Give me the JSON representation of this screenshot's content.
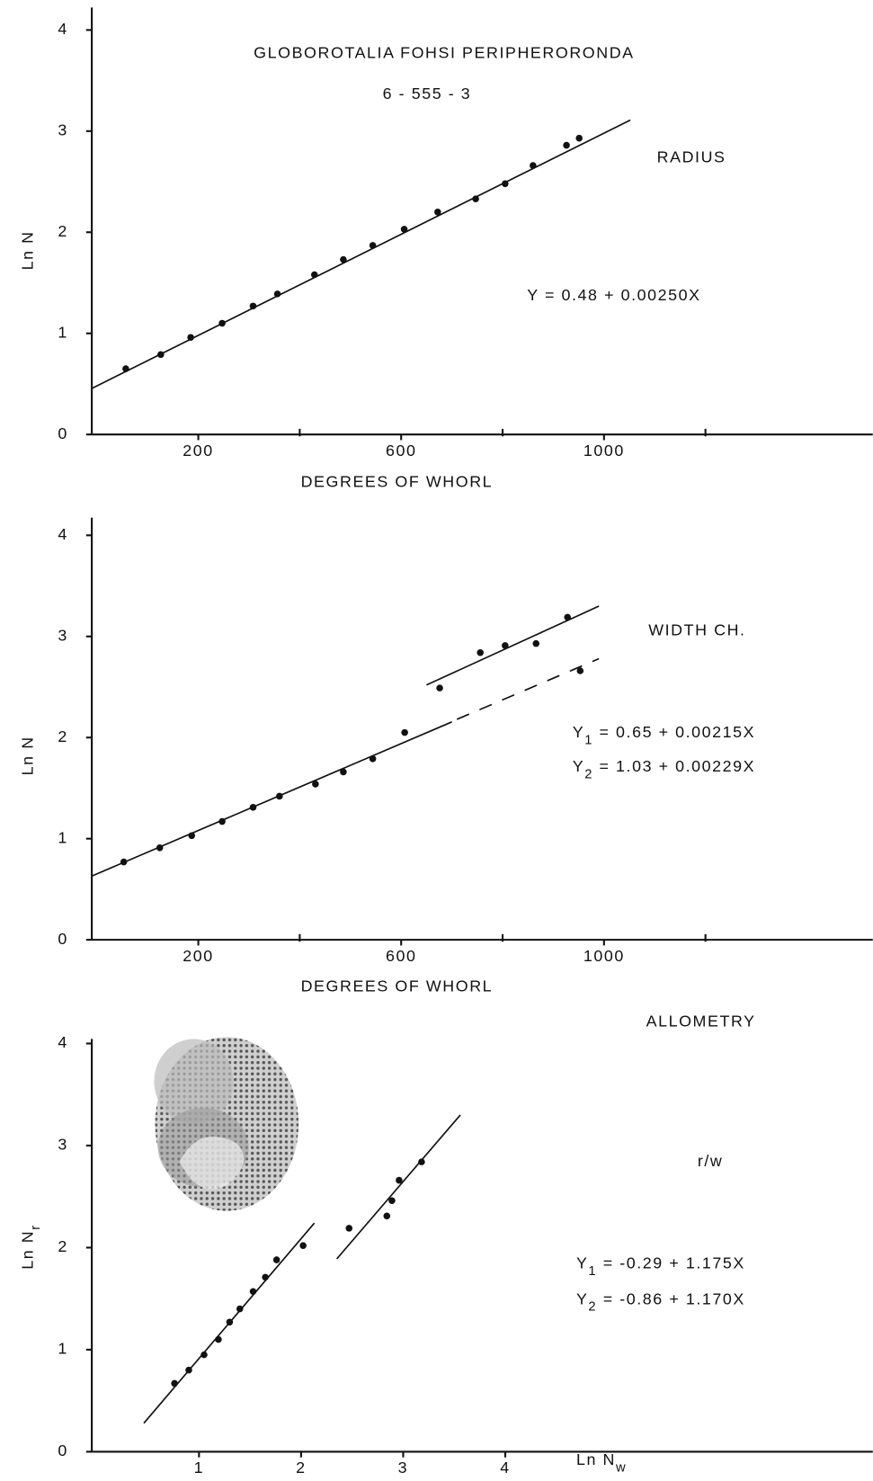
{
  "chart_data": [
    {
      "type": "scatter",
      "title": "GLOBOROTALIA  FOHSI  PERIPHERORONDA",
      "subtitle": "6 - 555 - 3",
      "x_label": "DEGREES   OF   WHORL",
      "y_label": {
        "text": "Ln N"
      },
      "annotations": [
        {
          "text": "RADIUS"
        },
        {
          "text": "Y = 0.48 + 0.00250X"
        }
      ],
      "x": [
        57,
        126,
        185,
        247,
        308,
        356,
        429,
        486,
        544,
        606,
        672,
        747,
        805,
        860,
        926,
        951
      ],
      "values": [
        0.65,
        0.79,
        0.96,
        1.1,
        1.27,
        1.39,
        1.58,
        1.73,
        1.87,
        2.03,
        2.2,
        2.33,
        2.48,
        2.66,
        2.86,
        2.93
      ],
      "fit_lines": [
        {
          "x": [
            -10,
            1052
          ],
          "y": [
            0.455,
            3.11
          ]
        }
      ],
      "xlim": [
        -10,
        1530
      ],
      "ylim": [
        0,
        4.25
      ],
      "xticks": [
        200,
        600,
        1000
      ],
      "xminorticks": [
        400,
        800,
        1200
      ],
      "yticks": [
        0,
        1,
        2,
        3,
        4
      ],
      "color": "#111"
    },
    {
      "type": "scatter",
      "x_label": "DEGREES   OF   WHORL",
      "y_label": {
        "text": "Ln N"
      },
      "annotations": [
        {
          "text": "WIDTH  CH."
        },
        {
          "text": "Y",
          "sub": "1",
          "rest": " = 0.65 + 0.00215X"
        },
        {
          "text": "Y",
          "sub": "2",
          "rest": " = 1.03 + 0.00229X"
        }
      ],
      "x": [
        53,
        124,
        187,
        247,
        308,
        360,
        431,
        486,
        544,
        607,
        676,
        756,
        805,
        866,
        928,
        953
      ],
      "values": [
        0.77,
        0.91,
        1.03,
        1.17,
        1.31,
        1.42,
        1.54,
        1.66,
        1.79,
        2.05,
        2.49,
        2.84,
        2.91,
        2.93,
        3.19,
        2.66
      ],
      "fit_lines": [
        {
          "x": [
            -10,
            700
          ],
          "y": [
            0.63,
            2.155
          ]
        },
        {
          "x": [
            710,
            990
          ],
          "y": [
            2.18,
            2.78
          ],
          "dashed": true
        },
        {
          "x": [
            650,
            990
          ],
          "y": [
            2.52,
            3.3
          ]
        }
      ],
      "xlim": [
        -10,
        1530
      ],
      "ylim": [
        0,
        4.25
      ],
      "xticks": [
        200,
        600,
        1000
      ],
      "xminorticks": [
        400,
        800,
        1200
      ],
      "yticks": [
        0,
        1,
        2,
        3,
        4
      ],
      "color": "#111"
    },
    {
      "type": "scatter",
      "x_label": {
        "text": "Ln  N",
        "sub": "w"
      },
      "y_label": {
        "text": "Ln N",
        "sub": "r"
      },
      "annotations": [
        {
          "text": "ALLOMETRY"
        },
        {
          "text": "r/w"
        },
        {
          "text": "Y",
          "sub": "1",
          "rest": " = -0.29 + 1.175X"
        },
        {
          "text": "Y",
          "sub": "2",
          "rest": " = -0.86 + 1.170X"
        }
      ],
      "x": [
        0.76,
        0.9,
        1.05,
        1.19,
        1.3,
        1.4,
        1.53,
        1.65,
        1.76,
        2.02,
        2.47,
        2.84,
        2.89,
        2.96,
        3.18
      ],
      "values": [
        0.67,
        0.8,
        0.95,
        1.1,
        1.27,
        1.4,
        1.57,
        1.71,
        1.88,
        2.02,
        2.19,
        2.31,
        2.46,
        2.66,
        2.84
      ],
      "fit_lines": [
        {
          "x": [
            0.46,
            2.13
          ],
          "y": [
            0.28,
            2.24
          ]
        },
        {
          "x": [
            2.35,
            3.56
          ],
          "y": [
            1.89,
            3.3
          ]
        }
      ],
      "xlim": [
        -0.05,
        7.6
      ],
      "ylim": [
        0,
        4.1
      ],
      "xticks": [
        1,
        2,
        3,
        4
      ],
      "yticks": [
        0,
        1,
        2,
        3,
        4
      ],
      "color": "#111"
    }
  ]
}
